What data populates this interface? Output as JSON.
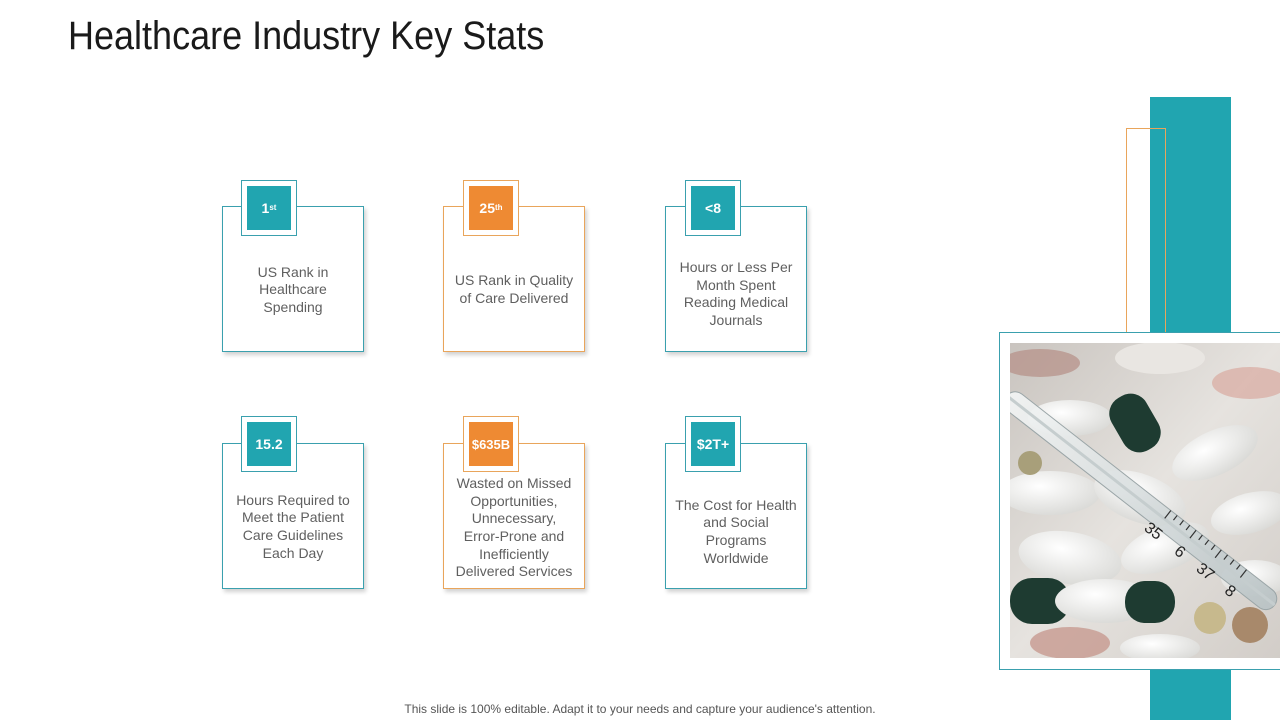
{
  "slide": {
    "title": "Healthcare Industry Key Stats",
    "footer": "This slide is 100% editable. Adapt it to your needs and capture your audience's attention."
  },
  "stats": [
    {
      "value": "1",
      "suffix": "st",
      "label": "US Rank in Healthcare Spending",
      "accent": "#21a5b0"
    },
    {
      "value": "25",
      "suffix": "th",
      "label": "US Rank in Quality of Care Delivered",
      "accent": "#ee8a33"
    },
    {
      "value": "<8",
      "suffix": "",
      "label": "Hours or Less Per Month Spent Reading Medical Journals",
      "accent": "#21a5b0"
    },
    {
      "value": "15.2",
      "suffix": "",
      "label": "Hours Required to Meet the Patient Care Guidelines Each Day",
      "accent": "#21a5b0"
    },
    {
      "value": "$635B",
      "suffix": "",
      "label": "Wasted on Missed Opportunities, Unnecessary, Error-Prone and Inefficiently Delivered Services",
      "accent": "#ee8a33"
    },
    {
      "value": "$2T+",
      "suffix": "",
      "label": "The Cost for Health and Social Programs Worldwide",
      "accent": "#21a5b0"
    }
  ],
  "photo": {
    "icon": "pills-thermometer-photo",
    "thermometer_digits": [
      "35",
      "6",
      "37",
      "8"
    ]
  },
  "colors": {
    "teal": "#21a5b0",
    "orange": "#ee8a33",
    "title": "#1a1a1a"
  }
}
